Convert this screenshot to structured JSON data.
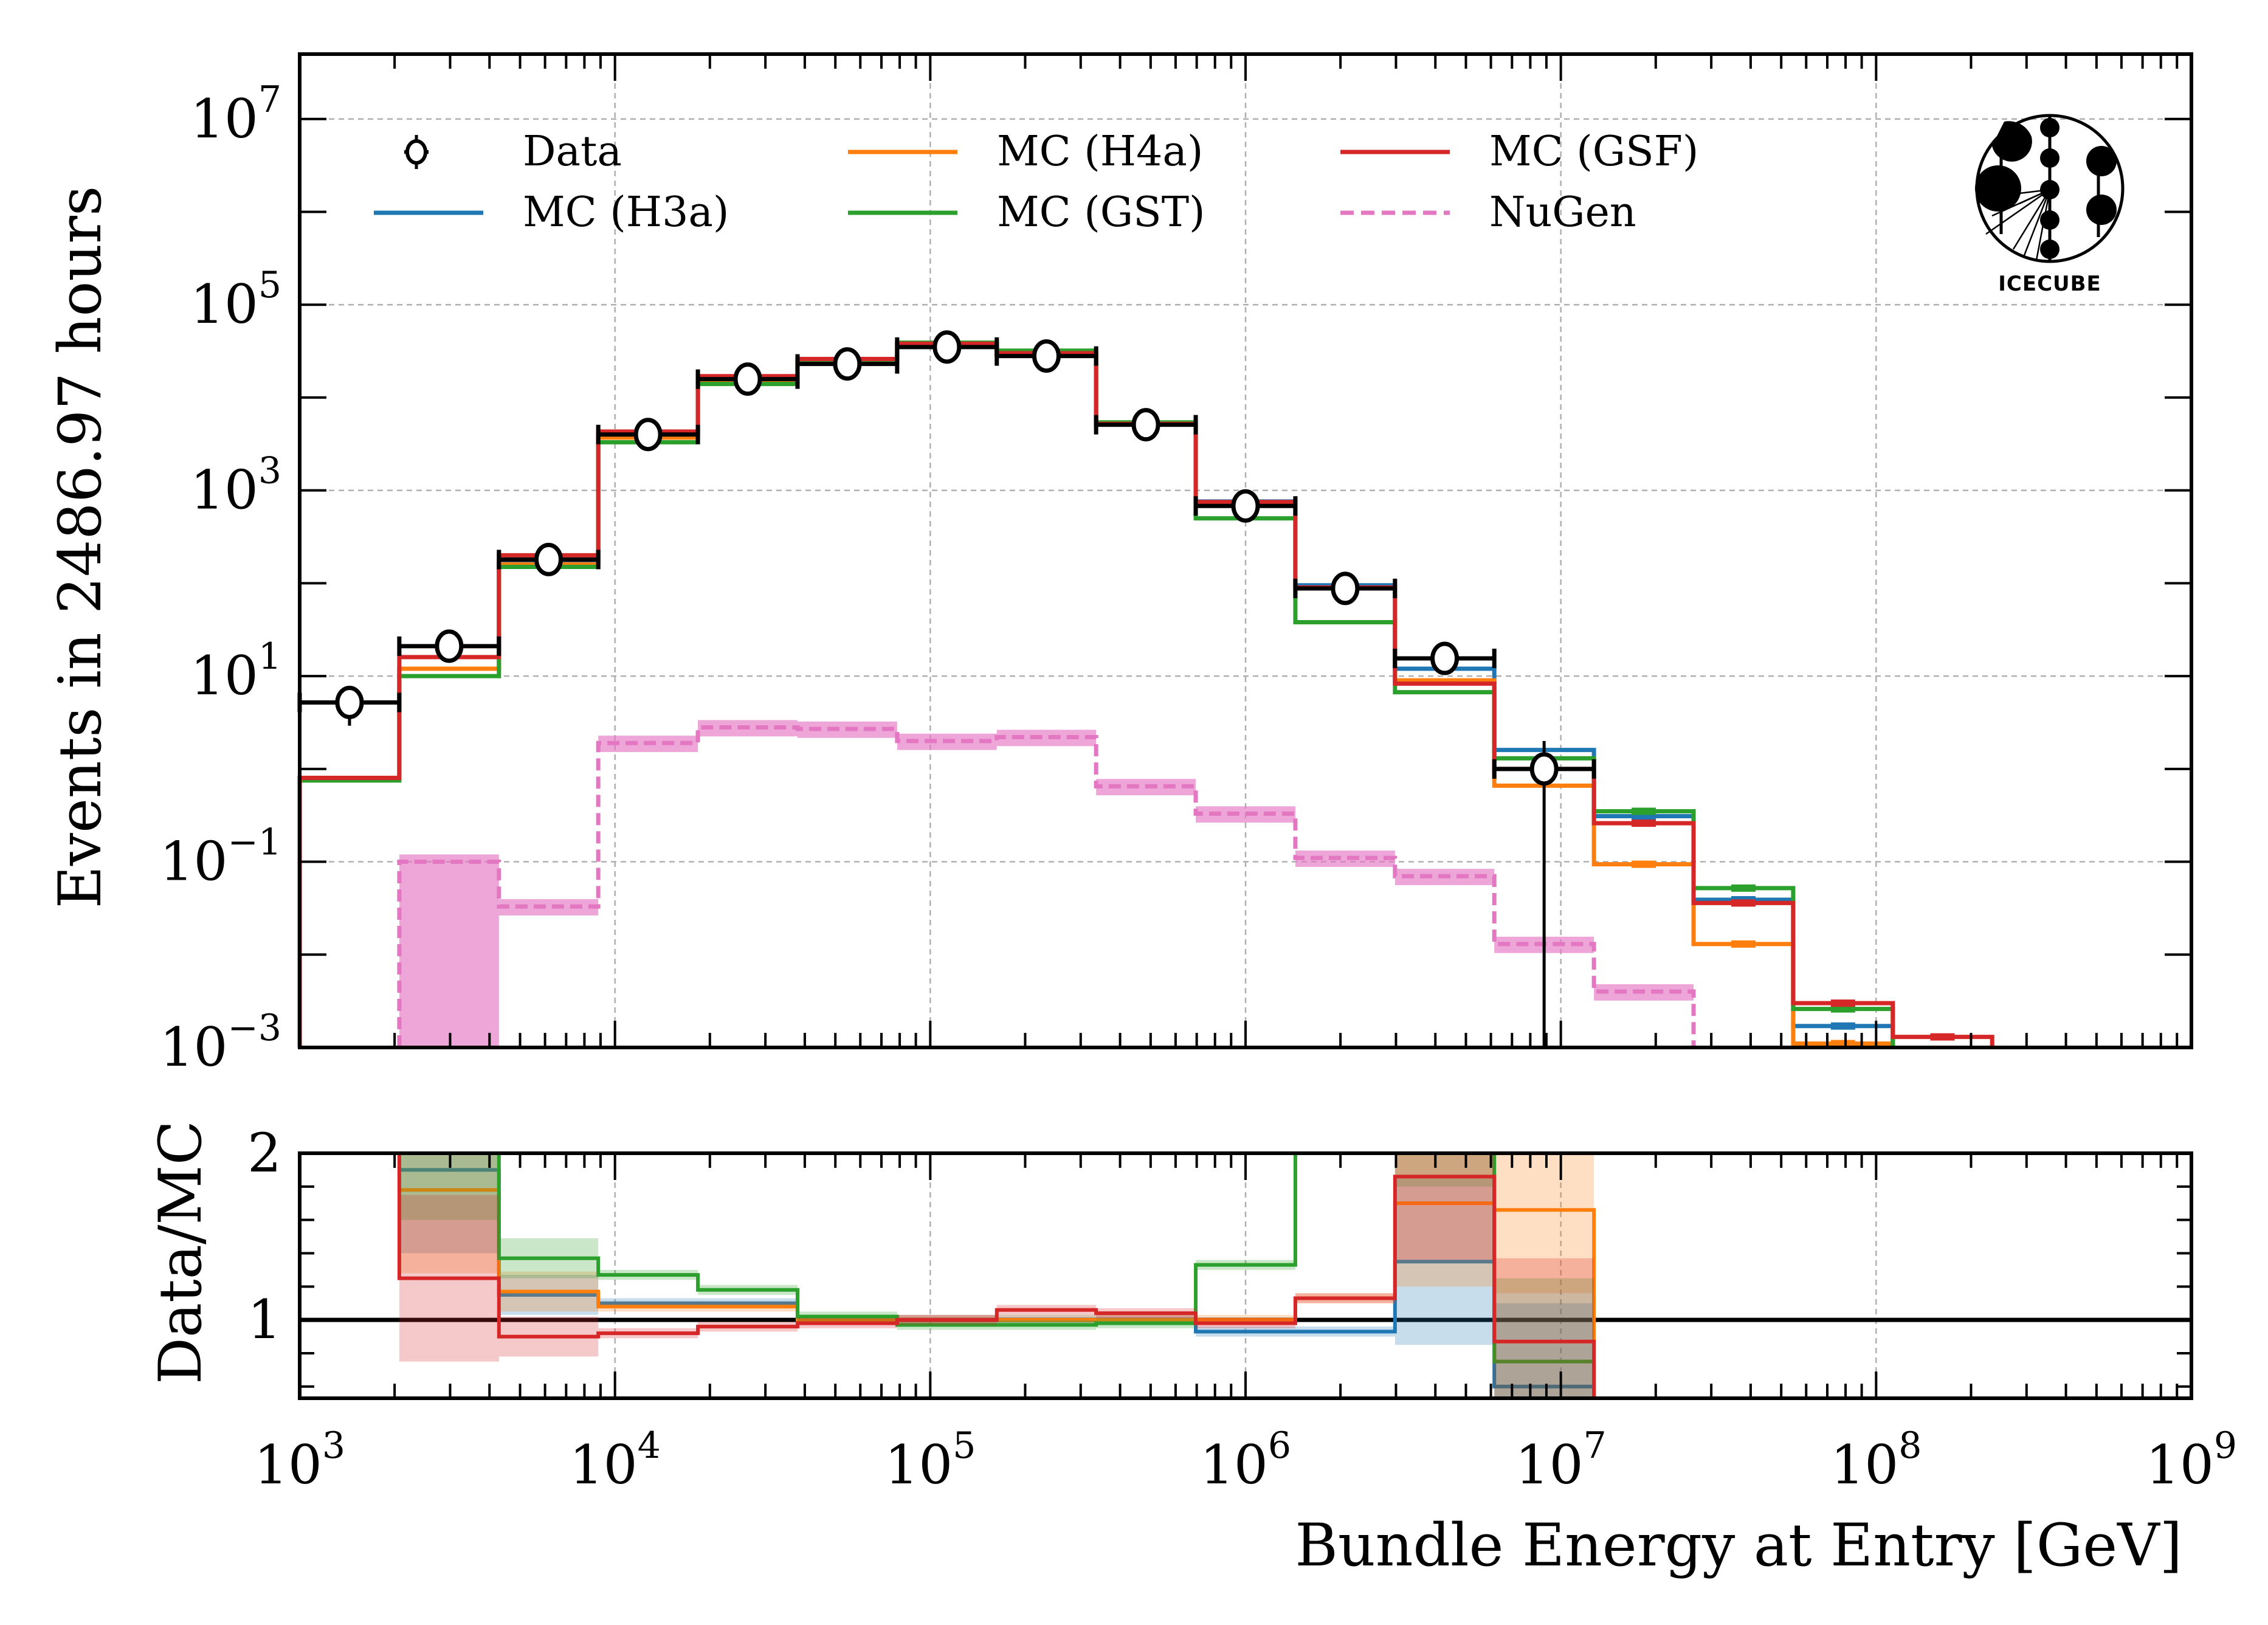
{
  "chart_data": [
    {
      "panel": "main",
      "type": "bar",
      "histogram_style": "step",
      "xscale": "log",
      "yscale": "log",
      "xlabel": "",
      "ylabel": "Events in 2486.97 hours",
      "xlim": [
        1000,
        1000000000
      ],
      "ylim": [
        0.001,
        50000000
      ],
      "grid": true,
      "legend_placement": "top-left",
      "x_tick_labels": [
        "10^3",
        "10^4",
        "10^5",
        "10^6",
        "10^7",
        "10^8",
        "10^9"
      ],
      "y_tick_labels": [
        {
          "value": 10000000,
          "label": "10",
          "exp": "7"
        },
        {
          "value": 100000,
          "label": "10",
          "exp": "5"
        },
        {
          "value": 1000,
          "label": "10",
          "exp": "3"
        },
        {
          "value": 10,
          "label": "10",
          "exp": "1"
        },
        {
          "value": 0.1,
          "label": "10",
          "exp": "−1"
        },
        {
          "value": 0.001,
          "label": "10",
          "exp": "−3"
        }
      ],
      "log10_bin_edges": [
        3.0,
        3.316,
        3.632,
        3.947,
        4.263,
        4.579,
        4.895,
        5.211,
        5.526,
        5.842,
        6.158,
        6.474,
        6.789,
        7.105,
        7.421,
        7.737,
        8.053,
        8.368
      ],
      "series": [
        {
          "name": "Data",
          "style": "points",
          "color": "#000000",
          "values": [
            5.2,
            21,
            180,
            4000,
            15800,
            23000,
            35000,
            28000,
            5100,
            680,
            88,
            15.5,
            1.0,
            null,
            null,
            null,
            null
          ]
        },
        {
          "name": "MC (H3a)",
          "style": "step",
          "color": "#1f77b4",
          "values": [
            0.8,
            12,
            170,
            3800,
            15500,
            25000,
            37000,
            29000,
            5200,
            760,
            95,
            12,
            1.6,
            0.31,
            0.039,
            0.0017,
            null
          ]
        },
        {
          "name": "MC (H4a)",
          "style": "step",
          "color": "#ff7f0e",
          "values": [
            0.8,
            12,
            160,
            3700,
            15000,
            25000,
            37000,
            29000,
            5100,
            730,
            88,
            9,
            0.66,
            0.094,
            0.013,
            0.0011,
            null
          ]
        },
        {
          "name": "MC (GST)",
          "style": "step",
          "color": "#2ca02c",
          "values": [
            0.75,
            10,
            150,
            3300,
            14000,
            25000,
            39000,
            32000,
            5400,
            500,
            38,
            6.7,
            1.3,
            0.35,
            0.052,
            0.0026,
            null
          ]
        },
        {
          "name": "MC (GSF)",
          "style": "step",
          "color": "#d62728",
          "values": [
            0.8,
            16,
            200,
            4300,
            17000,
            26000,
            38000,
            30000,
            5200,
            750,
            90,
            8.3,
            1.0,
            0.26,
            0.036,
            0.003,
            0.0013
          ]
        },
        {
          "name": "NuGen",
          "style": "dashed-step",
          "color": "#e377c2",
          "values": [
            null,
            0.1,
            0.033,
            1.9,
            2.8,
            2.7,
            2.0,
            2.2,
            0.65,
            0.33,
            0.11,
            0.07,
            0.013,
            0.004,
            null,
            null,
            null
          ]
        }
      ]
    },
    {
      "panel": "ratio",
      "type": "bar",
      "histogram_style": "step",
      "xscale": "log",
      "yscale": "linear",
      "xlabel": "Bundle Energy at Entry [GeV]",
      "ylabel": "Data/MC",
      "xlim": [
        1000,
        1000000000
      ],
      "ylim": [
        0.53,
        2
      ],
      "y_tick_labels": [
        {
          "value": 2,
          "label": "2"
        },
        {
          "value": 1,
          "label": "1"
        }
      ],
      "reference_line": 1,
      "log10_bin_edges": [
        3.0,
        3.316,
        3.632,
        3.947,
        4.263,
        4.579,
        4.895,
        5.211,
        5.526,
        5.842,
        6.158,
        6.474,
        6.789,
        7.105,
        7.421,
        7.737,
        8.053,
        8.368
      ],
      "series": [
        {
          "name": "MC (H3a)",
          "color": "#1f77b4",
          "values": [
            null,
            1.9,
            1.15,
            1.1,
            1.1,
            1.0,
            1.0,
            1.0,
            1.0,
            0.93,
            0.93,
            1.35,
            0.6,
            null,
            null,
            null,
            null
          ]
        },
        {
          "name": "MC (H4a)",
          "color": "#ff7f0e",
          "values": [
            null,
            1.78,
            1.17,
            1.08,
            1.08,
            1.0,
            1.0,
            1.0,
            1.0,
            1.0,
            1.13,
            1.7,
            1.66,
            null,
            null,
            null,
            null
          ]
        },
        {
          "name": "MC (GST)",
          "color": "#2ca02c",
          "values": [
            null,
            2.1,
            1.37,
            1.27,
            1.18,
            1.02,
            0.97,
            0.97,
            0.98,
            1.33,
            2.3,
            2.3,
            0.75,
            null,
            null,
            null,
            null
          ]
        },
        {
          "name": "MC (GSF)",
          "color": "#d62728",
          "values": [
            null,
            1.25,
            0.9,
            0.92,
            0.96,
            0.98,
            1.0,
            1.06,
            1.04,
            0.98,
            1.13,
            1.86,
            0.87,
            null,
            null,
            null,
            null
          ]
        }
      ]
    }
  ],
  "legend": {
    "items": [
      {
        "label": "Data",
        "color": "#000000",
        "kind": "errorbar"
      },
      {
        "label": "MC (H3a)",
        "color": "#1f77b4",
        "kind": "line"
      },
      {
        "label": "MC (H4a)",
        "color": "#ff7f0e",
        "kind": "line"
      },
      {
        "label": "MC (GST)",
        "color": "#2ca02c",
        "kind": "line"
      },
      {
        "label": "MC (GSF)",
        "color": "#d62728",
        "kind": "line"
      },
      {
        "label": "NuGen",
        "color": "#e377c2",
        "kind": "dashed"
      }
    ]
  },
  "logo": {
    "text": "IceCube"
  },
  "labels": {
    "ylabel_main": "Events in 2486.97 hours",
    "ylabel_ratio": "Data/MC",
    "xlabel": "Bundle Energy at Entry [GeV]"
  }
}
